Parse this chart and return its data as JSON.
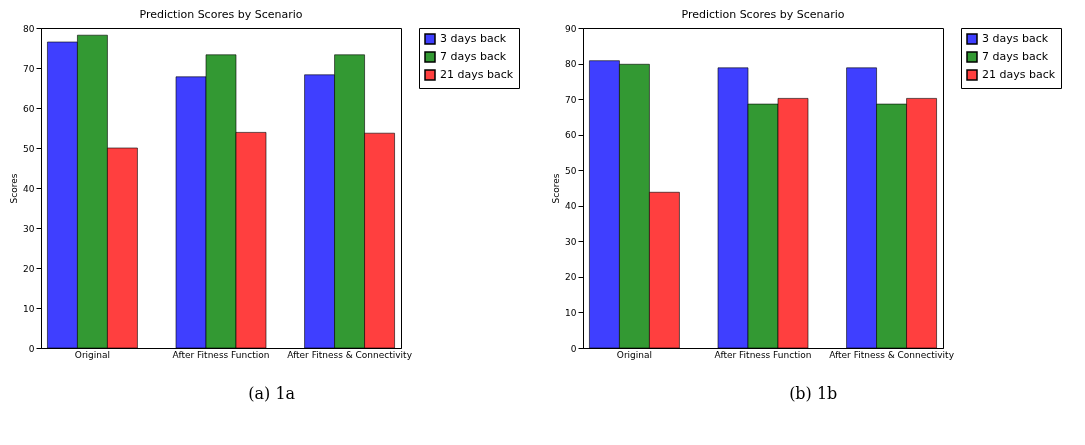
{
  "chart_data": [
    {
      "type": "bar",
      "title": "Prediction Scores by Scenario",
      "ylabel": "Scores",
      "categories": [
        "Original",
        "After Fitness Function",
        "After Fitness & Connectivity"
      ],
      "series": [
        {
          "name": "3 days back",
          "color": "#3f3fff",
          "values": [
            76.5,
            67.8,
            68.3
          ]
        },
        {
          "name": "7 days back",
          "color": "#339933",
          "values": [
            78.2,
            73.3,
            73.3
          ]
        },
        {
          "name": "21 days back",
          "color": "#ff3f3f",
          "values": [
            50.0,
            53.9,
            53.7
          ]
        }
      ],
      "ylim": [
        0,
        80
      ],
      "yticks": [
        0,
        10,
        20,
        30,
        40,
        50,
        60,
        70,
        80
      ],
      "grid": false,
      "legend": "top right",
      "annotations": [
        "(a) 1a"
      ]
    },
    {
      "type": "bar",
      "title": "Prediction Scores by Scenario",
      "ylabel": "Scores",
      "categories": [
        "Original",
        "After Fitness Function",
        "After Fitness & Connectivity"
      ],
      "series": [
        {
          "name": "3 days back",
          "color": "#3f3fff",
          "values": [
            80.8,
            78.8,
            78.8
          ]
        },
        {
          "name": "7 days back",
          "color": "#339933",
          "values": [
            79.8,
            68.6,
            68.6
          ]
        },
        {
          "name": "21 days back",
          "color": "#ff3f3f",
          "values": [
            43.8,
            70.2,
            70.2
          ]
        }
      ],
      "ylim": [
        0,
        90
      ],
      "yticks": [
        0,
        10,
        20,
        30,
        40,
        50,
        60,
        70,
        80,
        90
      ],
      "grid": false,
      "legend": "top right",
      "annotations": [
        "(b) 1b"
      ]
    }
  ]
}
